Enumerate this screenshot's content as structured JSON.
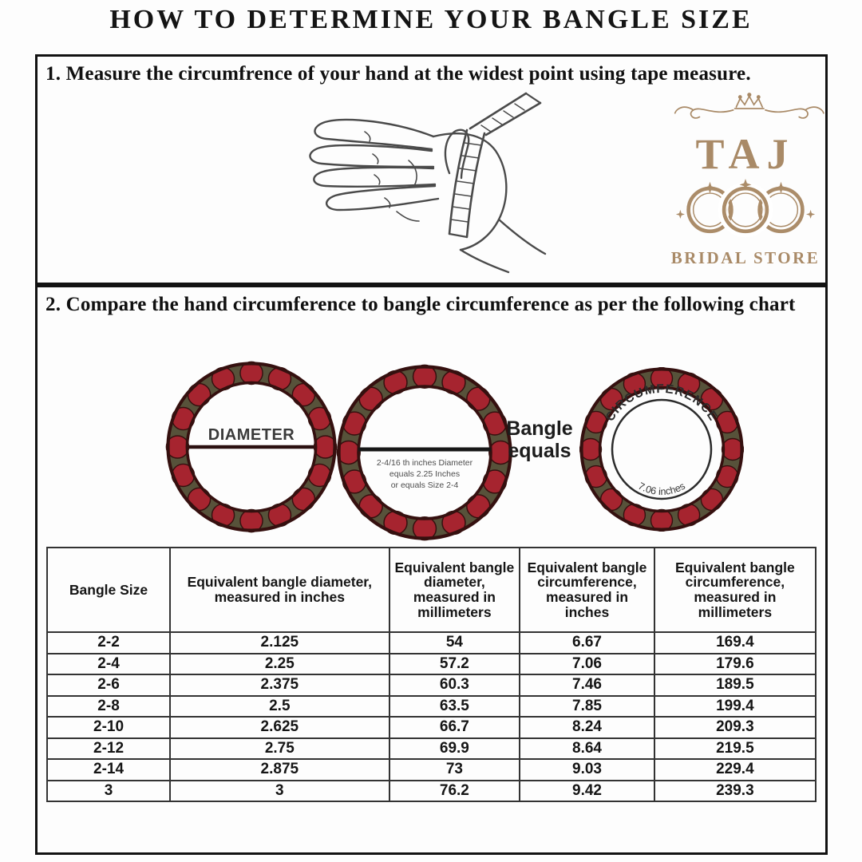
{
  "page": {
    "title": "HOW TO DETERMINE YOUR BANGLE SIZE"
  },
  "steps": {
    "step1": "1. Measure the circumfrence of your hand at the widest point using tape measure.",
    "step2": "2. Compare the hand circumference to bangle circumference as per the following chart"
  },
  "logo": {
    "brand": "TAJ",
    "subtitle": "BRIDAL STORE",
    "color": "#a98a67"
  },
  "diagram": {
    "diameter_label": "DIAMETER",
    "bangle_note": {
      "line1": "2-4/16 th inches Diameter",
      "line2": "equals 2.25 Inches",
      "line3": "or equals Size 2-4"
    },
    "equals": {
      "line1": "Bangle",
      "line2": "equals"
    },
    "circumference_label": "CIRCUMFERENCE",
    "circumference_value": "7.06 inches",
    "colors": {
      "ring_red": "#a6242f",
      "ring_olive": "#57523a",
      "ring_outline": "#35100f"
    }
  },
  "table": {
    "headers": [
      "Bangle Size",
      "Equivalent bangle diameter, measured in inches",
      "Equivalent bangle diameter, measured in millimeters",
      "Equivalent bangle circumference, measured in inches",
      "Equivalent bangle circumference, measured in millimeters"
    ],
    "rows": [
      [
        "2-2",
        "2.125",
        "54",
        "6.67",
        "169.4"
      ],
      [
        "2-4",
        "2.25",
        "57.2",
        "7.06",
        "179.6"
      ],
      [
        "2-6",
        "2.375",
        "60.3",
        "7.46",
        "189.5"
      ],
      [
        "2-8",
        "2.5",
        "63.5",
        "7.85",
        "199.4"
      ],
      [
        "2-10",
        "2.625",
        "66.7",
        "8.24",
        "209.3"
      ],
      [
        "2-12",
        "2.75",
        "69.9",
        "8.64",
        "219.5"
      ],
      [
        "2-14",
        "2.875",
        "73",
        "9.03",
        "229.4"
      ],
      [
        "3",
        "3",
        "76.2",
        "9.42",
        "239.3"
      ]
    ]
  }
}
